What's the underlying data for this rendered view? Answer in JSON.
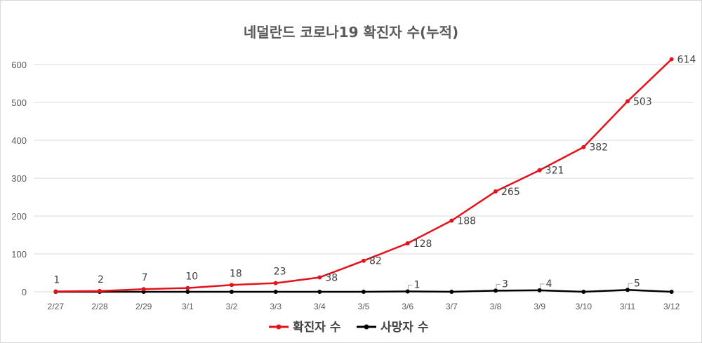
{
  "chart_data": {
    "type": "line",
    "title": "네덜란드 코로나19 확진자 수(누적)",
    "categories": [
      "2/27",
      "2/28",
      "2/29",
      "3/1",
      "3/2",
      "3/3",
      "3/4",
      "3/5",
      "3/6",
      "3/7",
      "3/8",
      "3/9",
      "3/10",
      "3/11",
      "3/12"
    ],
    "ylim": [
      0,
      600
    ],
    "yticks": [
      0,
      100,
      200,
      300,
      400,
      500,
      600
    ],
    "grid": true,
    "legend_position": "bottom",
    "series": [
      {
        "name": "확진자 수",
        "color": "#e3121b",
        "values": [
          1,
          2,
          7,
          10,
          18,
          23,
          38,
          82,
          128,
          188,
          265,
          321,
          382,
          503,
          614
        ],
        "labels": [
          "1",
          "2",
          "7",
          "10",
          "18",
          "23",
          "38",
          "82",
          "128",
          "188",
          "265",
          "321",
          "382",
          "503",
          "614"
        ]
      },
      {
        "name": "사망자 수",
        "color": "#000000",
        "values": [
          0,
          0,
          0,
          0,
          0,
          0,
          0,
          0,
          1,
          0,
          3,
          4,
          0,
          5,
          0
        ],
        "labels": [
          "",
          "",
          "",
          "",
          "",
          "",
          "",
          "",
          "1",
          "",
          "3",
          "4",
          "",
          "5",
          ""
        ]
      }
    ]
  }
}
